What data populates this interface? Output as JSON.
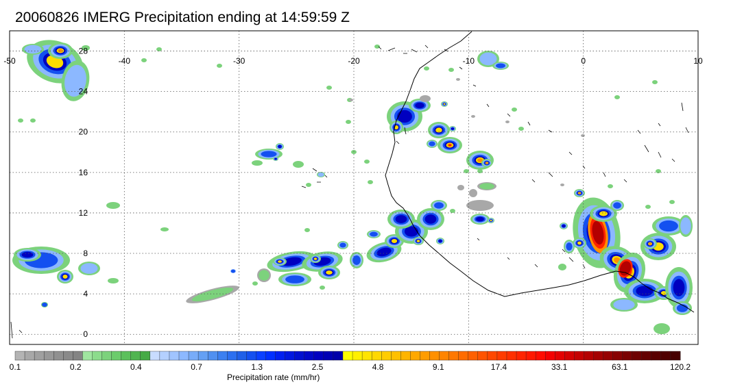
{
  "title": "20060826 IMERG Precipitation ending at 14:59:59 Z",
  "map": {
    "lon_range": [
      -50,
      10
    ],
    "lat_range": [
      -1,
      30
    ],
    "lon_ticks": [
      "-50",
      "-40",
      "-30",
      "-20",
      "-10",
      "0",
      "10"
    ],
    "lat_ticks": [
      "28",
      "24",
      "20",
      "16",
      "12",
      "8",
      "4",
      "0"
    ],
    "gridlines": true,
    "coastline": "West Africa (Senegal to Cameroon)"
  },
  "colorbar": {
    "title": "Precipitation rate (mm/hr)",
    "tick_labels": [
      "0.1",
      "0.2",
      "0.4",
      "0.7",
      "1.3",
      "2.5",
      "4.8",
      "9.1",
      "17.4",
      "33.1",
      "63.1",
      "120.2"
    ],
    "colors": [
      "#b4b4b4",
      "#a8a8a8",
      "#a0a0a0",
      "#989898",
      "#909090",
      "#8a8a8a",
      "#848484",
      "#a0e6a0",
      "#8cdc8c",
      "#7cd27c",
      "#6ccc6c",
      "#5cc05c",
      "#50b450",
      "#46aa46",
      "#c8dcff",
      "#b4d0ff",
      "#a0c4ff",
      "#8cb8ff",
      "#78acf8",
      "#64a0f4",
      "#5090f0",
      "#3c80f0",
      "#2c70f0",
      "#2060e8",
      "#1450f0",
      "#0a40ff",
      "#0030ff",
      "#0020f0",
      "#0018e0",
      "#0010d0",
      "#0008c8",
      "#0000c0",
      "#0000b4",
      "#0000aa",
      "#ffff00",
      "#fff000",
      "#ffe400",
      "#ffd800",
      "#ffcc00",
      "#ffc000",
      "#ffb400",
      "#ffa800",
      "#ff9c00",
      "#ff9000",
      "#ff8400",
      "#ff7800",
      "#ff6c00",
      "#ff6000",
      "#ff5400",
      "#ff4800",
      "#ff3c00",
      "#ff3000",
      "#ff2400",
      "#ff1800",
      "#ff0c00",
      "#f40000",
      "#e40000",
      "#d40000",
      "#c40000",
      "#b40000",
      "#a40000",
      "#960000",
      "#880000",
      "#7a0000",
      "#6e0000",
      "#640000",
      "#5a0000",
      "#500000",
      "#460000"
    ]
  }
}
